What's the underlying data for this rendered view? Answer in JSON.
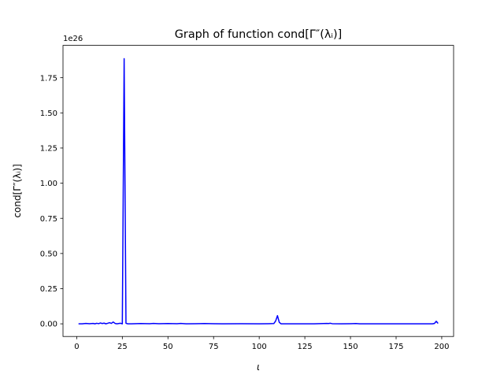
{
  "chart_data": {
    "type": "line",
    "title": "Graph of function cond[Γ″(λᵢ)]",
    "xlabel": "ι",
    "ylabel": "cond[Γ″(λᵢ)]",
    "y_offset_label": "1e26",
    "x_ticks": [
      "0",
      "25",
      "50",
      "75",
      "100",
      "125",
      "150",
      "175",
      "200"
    ],
    "y_ticks": [
      "0.00",
      "0.25",
      "0.50",
      "0.75",
      "1.00",
      "1.25",
      "1.50",
      "1.75"
    ],
    "xlim": [
      -7.5,
      206.5
    ],
    "ylim": [
      -0.09,
      1.98
    ],
    "y_scale_multiplier": 1e+26,
    "grid": false,
    "legend": "none",
    "series": [
      {
        "color": "#0000ff",
        "x": [
          1,
          3,
          5,
          7,
          9,
          10,
          11,
          12,
          13,
          14,
          15,
          16,
          17,
          18,
          19,
          20,
          21,
          22,
          23,
          24,
          25,
          26,
          27,
          28,
          30,
          35,
          40,
          42,
          45,
          50,
          55,
          57,
          60,
          65,
          70,
          75,
          80,
          90,
          100,
          105,
          108,
          109,
          110,
          111,
          112,
          115,
          120,
          130,
          137,
          138,
          139,
          140,
          145,
          150,
          153,
          155,
          160,
          170,
          180,
          190,
          195,
          196,
          197,
          198
        ],
        "y": [
          0.0,
          0.0,
          0.003,
          0.001,
          0.003,
          0.0,
          0.004,
          0.001,
          0.006,
          0.002,
          0.005,
          0.0,
          0.004,
          0.008,
          0.003,
          0.013,
          0.003,
          0.0,
          0.002,
          0.004,
          0.0,
          1.885,
          0.004,
          0.0,
          0.0,
          0.002,
          0.001,
          0.003,
          0.001,
          0.002,
          0.001,
          0.003,
          0.0,
          0.001,
          0.002,
          0.001,
          0.0,
          0.001,
          0.0,
          0.001,
          0.002,
          0.02,
          0.058,
          0.01,
          0.0,
          0.0,
          0.0,
          0.0,
          0.003,
          0.002,
          0.004,
          0.001,
          0.0,
          0.001,
          0.002,
          0.0,
          0.0,
          0.0,
          0.0,
          0.0,
          0.0,
          0.003,
          0.018,
          0.003
        ]
      }
    ]
  }
}
